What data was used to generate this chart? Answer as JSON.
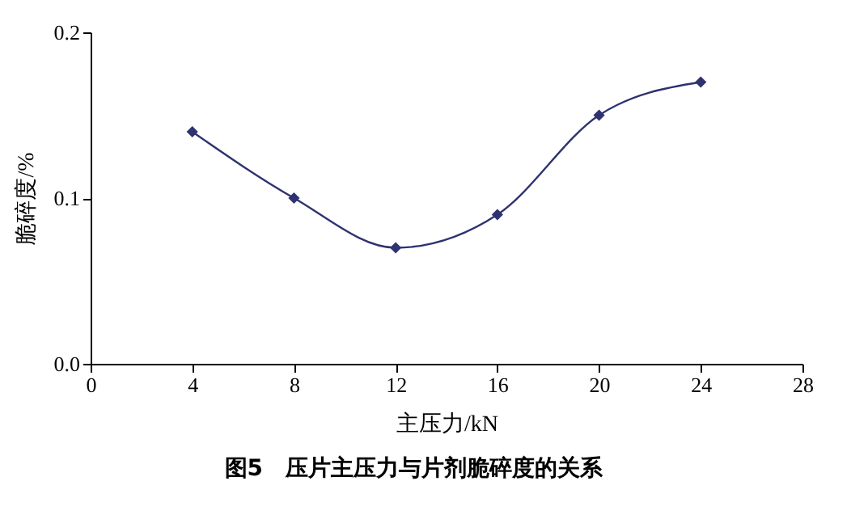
{
  "chart_data": {
    "type": "line",
    "title": "图5　压片主压力与片剂脆碎度的关系",
    "xlabel": "主压力/kN",
    "ylabel": "脆碎度/%",
    "x": [
      4,
      8,
      12,
      16,
      20,
      24
    ],
    "series": [
      {
        "color": "#2e3270",
        "values": [
          0.14,
          0.1,
          0.07,
          0.09,
          0.15,
          0.17
        ]
      }
    ],
    "xlim": [
      0,
      28
    ],
    "xticks": [
      0,
      4,
      8,
      12,
      16,
      20,
      24,
      28
    ],
    "ylim": [
      0,
      0.2
    ],
    "yticks": [
      {
        "value": 0,
        "label": "0.0"
      },
      0.1,
      0.2
    ],
    "grid": false,
    "marker": "diamond",
    "line_style": "solid"
  }
}
